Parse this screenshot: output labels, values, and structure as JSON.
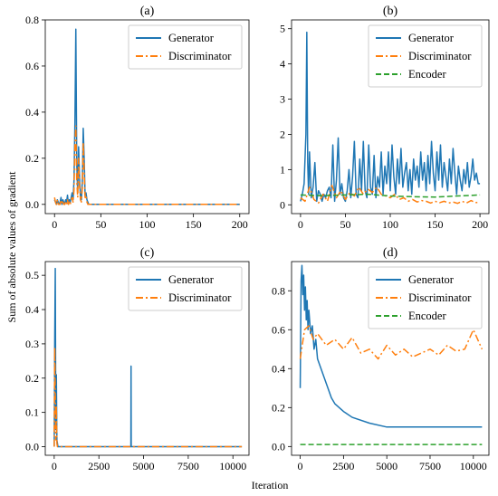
{
  "figure": {
    "ylabel": "Sum of absolute values of gradient",
    "xlabel": "Iteration",
    "colors": {
      "generator": "#1f77b4",
      "discriminator": "#ff7f0e",
      "encoder": "#2ca02c"
    }
  },
  "chart_data": [
    {
      "type": "line",
      "title": "(a)",
      "xlim": [
        -10,
        210
      ],
      "ylim": [
        -0.04,
        0.8
      ],
      "xticks": [
        0,
        50,
        100,
        150,
        200
      ],
      "yticks": [
        0.0,
        0.2,
        0.4,
        0.6,
        0.8
      ],
      "legend_position": "upper right",
      "series": [
        {
          "name": "Generator",
          "style": "solid",
          "x": [
            0,
            1,
            2,
            3,
            4,
            5,
            6,
            7,
            8,
            9,
            10,
            11,
            12,
            13,
            14,
            15,
            16,
            17,
            18,
            19,
            20,
            21,
            22,
            23,
            24,
            25,
            26,
            27,
            28,
            29,
            30,
            31,
            32,
            33,
            34,
            35,
            36,
            37,
            38,
            39,
            40,
            45,
            50,
            60,
            80,
            100,
            120,
            140,
            160,
            180,
            200
          ],
          "y": [
            0.02,
            0.01,
            0.0,
            0.02,
            0.01,
            0.0,
            0.01,
            0.03,
            0.0,
            0.02,
            0.01,
            0.0,
            0.02,
            0.01,
            0.04,
            0.0,
            0.02,
            0.01,
            0.03,
            0.05,
            0.02,
            0.1,
            0.35,
            0.76,
            0.18,
            0.05,
            0.25,
            0.12,
            0.03,
            0.02,
            0.1,
            0.33,
            0.2,
            0.04,
            0.05,
            0.02,
            0.01,
            0.0,
            0.0,
            0.0,
            0.0,
            0.0,
            0.0,
            0.0,
            0.0,
            0.0,
            0.0,
            0.0,
            0.0,
            0.0,
            0.0
          ]
        },
        {
          "name": "Discriminator",
          "style": "dashdot",
          "x": [
            0,
            1,
            2,
            3,
            4,
            5,
            6,
            7,
            8,
            9,
            10,
            11,
            12,
            13,
            14,
            15,
            16,
            17,
            18,
            19,
            20,
            21,
            22,
            23,
            24,
            25,
            26,
            27,
            28,
            29,
            30,
            31,
            32,
            33,
            34,
            35,
            36,
            37,
            38,
            39,
            40,
            45,
            50,
            60,
            80,
            100,
            120,
            140,
            160,
            180,
            200
          ],
          "y": [
            0.03,
            0.01,
            0.0,
            0.02,
            0.0,
            0.0,
            0.0,
            0.02,
            0.0,
            0.01,
            0.0,
            0.0,
            0.01,
            0.0,
            0.02,
            0.0,
            0.01,
            0.0,
            0.02,
            0.03,
            0.01,
            0.06,
            0.25,
            0.34,
            0.1,
            0.03,
            0.2,
            0.08,
            0.02,
            0.01,
            0.07,
            0.27,
            0.14,
            0.03,
            0.04,
            0.01,
            0.0,
            0.0,
            0.0,
            0.0,
            0.0,
            0.0,
            0.0,
            0.0,
            0.0,
            0.0,
            0.0,
            0.0,
            0.0,
            0.0,
            0.0
          ]
        }
      ]
    },
    {
      "type": "line",
      "title": "(b)",
      "xlim": [
        -10,
        210
      ],
      "ylim": [
        -0.25,
        5.25
      ],
      "xticks": [
        0,
        50,
        100,
        150,
        200
      ],
      "yticks": [
        0,
        1,
        2,
        3,
        4,
        5
      ],
      "legend_position": "upper right",
      "series": [
        {
          "name": "Generator",
          "style": "solid",
          "x": [
            0,
            2,
            4,
            6,
            7,
            8,
            9,
            10,
            12,
            14,
            16,
            18,
            20,
            22,
            24,
            26,
            28,
            30,
            32,
            34,
            36,
            38,
            40,
            42,
            44,
            46,
            48,
            50,
            52,
            54,
            56,
            58,
            60,
            62,
            64,
            66,
            68,
            70,
            72,
            74,
            76,
            78,
            80,
            82,
            84,
            86,
            88,
            90,
            92,
            94,
            96,
            98,
            100,
            102,
            104,
            106,
            108,
            110,
            112,
            114,
            116,
            118,
            120,
            122,
            124,
            126,
            128,
            130,
            132,
            134,
            136,
            138,
            140,
            142,
            144,
            146,
            148,
            150,
            152,
            154,
            156,
            158,
            160,
            162,
            164,
            166,
            168,
            170,
            172,
            174,
            176,
            178,
            180,
            182,
            184,
            186,
            188,
            190,
            192,
            194,
            196,
            198,
            200
          ],
          "y": [
            0.1,
            0.3,
            0.6,
            2.0,
            4.9,
            1.2,
            0.3,
            1.5,
            0.2,
            0.5,
            1.2,
            0.1,
            0.4,
            0.3,
            0.1,
            0.3,
            0.2,
            0.4,
            0.5,
            0.2,
            1.7,
            0.1,
            0.7,
            1.9,
            0.3,
            0.6,
            0.2,
            0.1,
            0.4,
            1.0,
            0.2,
            0.8,
            1.8,
            0.3,
            0.2,
            1.3,
            0.4,
            1.8,
            0.4,
            0.2,
            1.7,
            0.5,
            0.3,
            1.4,
            0.2,
            0.8,
            0.5,
            1.5,
            0.3,
            1.1,
            0.6,
            1.5,
            0.4,
            1.7,
            0.8,
            0.3,
            1.3,
            0.6,
            1.6,
            0.5,
            0.9,
            1.2,
            0.4,
            1.0,
            0.3,
            1.3,
            0.7,
            1.1,
            0.5,
            1.5,
            0.7,
            1.2,
            0.4,
            1.4,
            0.6,
            1.8,
            0.9,
            0.4,
            1.5,
            0.7,
            1.7,
            0.5,
            1.2,
            0.8,
            0.4,
            1.3,
            0.6,
            1.6,
            0.9,
            0.3,
            1.1,
            0.7,
            0.4,
            1.0,
            0.6,
            1.2,
            0.5,
            0.8,
            1.3,
            0.7,
            0.9,
            0.6,
            0.6
          ]
        },
        {
          "name": "Discriminator",
          "style": "dashdot",
          "x": [
            0,
            5,
            10,
            15,
            20,
            25,
            30,
            35,
            40,
            45,
            50,
            55,
            60,
            65,
            70,
            75,
            80,
            85,
            90,
            95,
            100,
            105,
            110,
            115,
            120,
            125,
            130,
            135,
            140,
            145,
            150,
            155,
            160,
            165,
            170,
            175,
            180,
            185,
            190,
            195,
            200
          ],
          "y": [
            0.2,
            0.1,
            0.5,
            0.15,
            0.05,
            0.3,
            0.1,
            0.55,
            0.2,
            0.4,
            0.15,
            0.35,
            0.25,
            0.5,
            0.3,
            0.45,
            0.35,
            0.5,
            0.3,
            0.25,
            0.2,
            0.3,
            0.15,
            0.2,
            0.1,
            0.15,
            0.08,
            0.12,
            0.1,
            0.05,
            0.1,
            0.06,
            0.1,
            0.05,
            0.08,
            0.04,
            0.1,
            0.05,
            0.12,
            0.06,
            0.08
          ]
        },
        {
          "name": "Encoder",
          "style": "dashed",
          "x": [
            0,
            25,
            50,
            75,
            100,
            125,
            150,
            175,
            200
          ],
          "y": [
            0.28,
            0.26,
            0.28,
            0.3,
            0.25,
            0.23,
            0.22,
            0.25,
            0.28
          ]
        }
      ]
    },
    {
      "type": "line",
      "title": "(c)",
      "xlim": [
        -500,
        10900
      ],
      "ylim": [
        -0.025,
        0.54
      ],
      "xticks": [
        0,
        2500,
        5000,
        7500,
        10000
      ],
      "yticks": [
        0.0,
        0.1,
        0.2,
        0.3,
        0.4,
        0.5
      ],
      "legend_position": "upper right",
      "series": [
        {
          "name": "Generator",
          "style": "solid",
          "x": [
            0,
            30,
            60,
            90,
            120,
            150,
            180,
            210,
            240,
            270,
            300,
            4290,
            4300,
            4310,
            10500
          ],
          "y": [
            0.0,
            0.32,
            0.52,
            0.05,
            0.21,
            0.02,
            0.01,
            0.0,
            0.0,
            0.0,
            0.0,
            0.0,
            0.235,
            0.0,
            0.0
          ]
        },
        {
          "name": "Discriminator",
          "style": "dashdot",
          "x": [
            0,
            30,
            60,
            90,
            120,
            150,
            180,
            210,
            240,
            270,
            300,
            10500
          ],
          "y": [
            0.0,
            0.29,
            0.15,
            0.02,
            0.12,
            0.01,
            0.0,
            0.0,
            0.0,
            0.0,
            0.0,
            0.0
          ]
        }
      ]
    },
    {
      "type": "line",
      "title": "(d)",
      "xlim": [
        -500,
        10900
      ],
      "ylim": [
        -0.045,
        0.95
      ],
      "xticks": [
        0,
        2500,
        5000,
        7500,
        10000
      ],
      "yticks": [
        0.0,
        0.2,
        0.4,
        0.6,
        0.8
      ],
      "legend_position": "upper right",
      "series": [
        {
          "name": "Generator",
          "style": "solid",
          "x": [
            0,
            50,
            100,
            150,
            200,
            250,
            300,
            350,
            400,
            450,
            500,
            600,
            700,
            800,
            900,
            1000,
            1200,
            1400,
            1600,
            1800,
            2000,
            2500,
            3000,
            4000,
            5000,
            6000,
            7000,
            8000,
            9000,
            10000,
            10500
          ],
          "y": [
            0.3,
            0.85,
            0.93,
            0.78,
            0.88,
            0.7,
            0.82,
            0.65,
            0.75,
            0.6,
            0.7,
            0.58,
            0.62,
            0.5,
            0.55,
            0.45,
            0.4,
            0.35,
            0.3,
            0.25,
            0.22,
            0.18,
            0.15,
            0.12,
            0.1,
            0.1,
            0.1,
            0.1,
            0.1,
            0.1,
            0.1
          ]
        },
        {
          "name": "Discriminator",
          "style": "dashdot",
          "x": [
            0,
            250,
            500,
            750,
            1000,
            1500,
            2000,
            2500,
            3000,
            3500,
            4000,
            4500,
            5000,
            5500,
            6000,
            6500,
            7000,
            7500,
            8000,
            8500,
            9000,
            9500,
            10000,
            10500
          ],
          "y": [
            0.45,
            0.6,
            0.62,
            0.55,
            0.58,
            0.52,
            0.55,
            0.5,
            0.56,
            0.48,
            0.5,
            0.45,
            0.52,
            0.47,
            0.5,
            0.46,
            0.48,
            0.5,
            0.47,
            0.52,
            0.49,
            0.5,
            0.6,
            0.5
          ]
        },
        {
          "name": "Encoder",
          "style": "dashed",
          "x": [
            0,
            10500
          ],
          "y": [
            0.01,
            0.01
          ]
        }
      ]
    }
  ]
}
